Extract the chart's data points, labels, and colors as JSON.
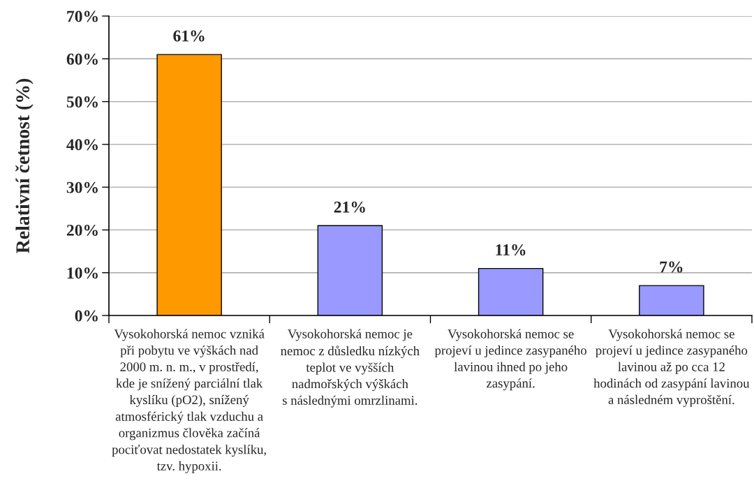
{
  "chart_data": {
    "type": "bar",
    "ylabel": "Relativní četnost (%)",
    "categories": [
      "Vysokohorská nemoc vzniká\npři pobytu ve výškách nad\n2000 m. n. m., v prostředí,\nkde je snížený parciální tlak\nkyslíku (pO2), snížený\natmosférický tlak vzduchu a\norganizmus člověka začíná\npociťovat nedostatek kyslíku,\ntzv. hypoxii.",
      "Vysokohorská nemoc je\nnemoc z důsledku nízkých\nteplot ve vyšších\nnadmořských výškách\ns následnými omrzlinami.",
      "Vysokohorská nemoc se\nprojeví u jedince zasypaného\nlavinou ihned po jeho\nzasypání.",
      "Vysokohorská nemoc se\nprojeví u jedince zasypaného\nlavinou až po cca 12\nhodinách od zasypání lavinou\na následném vyproštění."
    ],
    "values": [
      61,
      21,
      11,
      7
    ],
    "colors": [
      "#ff9900",
      "#9999ff",
      "#9999ff",
      "#9999ff"
    ],
    "value_labels": [
      "61%",
      "21%",
      "11%",
      "7%"
    ],
    "ylim": [
      0,
      70
    ],
    "yticks": [
      {
        "value": 0,
        "label": "0%"
      },
      {
        "value": 10,
        "label": "10%"
      },
      {
        "value": 20,
        "label": "20%"
      },
      {
        "value": 30,
        "label": "30%"
      },
      {
        "value": 40,
        "label": "40%"
      },
      {
        "value": 50,
        "label": "50%"
      },
      {
        "value": 60,
        "label": "60%"
      },
      {
        "value": 70,
        "label": "70%"
      }
    ],
    "grid": "y"
  }
}
